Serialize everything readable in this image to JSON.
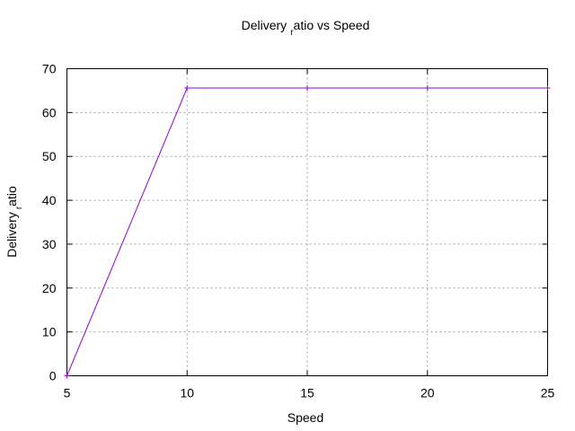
{
  "chart_data": {
    "type": "line",
    "title": {
      "before": "Delivery",
      "subscript": "r",
      "after": "atio vs Speed"
    },
    "xlabel": "Speed",
    "ylabel": {
      "before": "Delivery",
      "subscript": "r",
      "after": "atio"
    },
    "xlim": [
      5,
      25
    ],
    "ylim": [
      0,
      70
    ],
    "xticks": [
      5,
      10,
      15,
      20,
      25
    ],
    "yticks": [
      0,
      10,
      20,
      30,
      40,
      50,
      60,
      70
    ],
    "grid": true,
    "legend": "none",
    "series": [
      {
        "color": "#9400d3",
        "marker": "plus",
        "x": [
          5,
          10,
          15,
          20,
          25
        ],
        "y": [
          0,
          65.6,
          65.6,
          65.6,
          65.6
        ]
      }
    ]
  }
}
